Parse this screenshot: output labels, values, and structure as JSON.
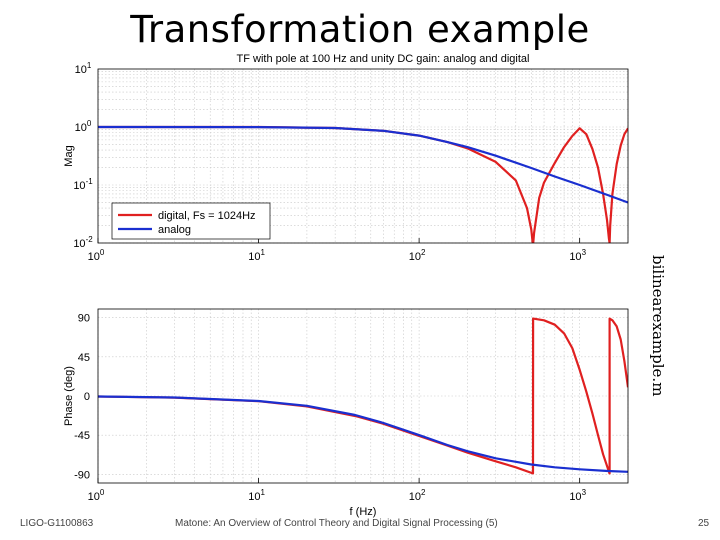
{
  "slide": {
    "title": "Transformation example",
    "side_label": "bilinearexample.m",
    "footer_left": "LIGO-G1100863",
    "footer_center": "Matone: An Overview of Control Theory and Digital Signal Processing (5)",
    "page_number": "25"
  },
  "colors": {
    "digital": "#e02020",
    "analog": "#1a2fd0",
    "grid": "#c8c8c8",
    "axis": "#000000"
  },
  "chart_data": [
    {
      "type": "line",
      "title": "TF with pole at 100 Hz and unity DC gain: analog and digital",
      "xlabel": "",
      "ylabel": "Mag",
      "xscale": "log",
      "yscale": "log",
      "xlim": [
        1,
        2000
      ],
      "ylim": [
        0.01,
        10
      ],
      "xticks": [
        "10^0",
        "10^1",
        "10^2",
        "10^3"
      ],
      "yticks": [
        "10^-2",
        "10^-1",
        "10^0",
        "10^1"
      ],
      "grid": true,
      "legend_position": "lower-left",
      "series": [
        {
          "name": "digital, Fs = 1024Hz",
          "x": [
            1,
            10,
            30,
            60,
            100,
            150,
            200,
            300,
            400,
            470,
            500,
            512,
            520,
            560,
            600,
            700,
            800,
            900,
            1000,
            1100,
            1200,
            1300,
            1400,
            1480,
            1520,
            1536,
            1550,
            1600,
            1700,
            1800,
            1900,
            2000
          ],
          "y": [
            1.0,
            1.0,
            0.96,
            0.86,
            0.71,
            0.55,
            0.43,
            0.25,
            0.12,
            0.04,
            0.017,
            0.009,
            0.015,
            0.06,
            0.11,
            0.24,
            0.45,
            0.7,
            0.95,
            0.75,
            0.42,
            0.2,
            0.07,
            0.025,
            0.012,
            0.01,
            0.02,
            0.07,
            0.23,
            0.48,
            0.75,
            0.95
          ]
        },
        {
          "name": "analog",
          "x": [
            1,
            10,
            30,
            60,
            100,
            150,
            200,
            300,
            500,
            700,
            1000,
            1500,
            2000
          ],
          "y": [
            1.0,
            0.995,
            0.96,
            0.86,
            0.71,
            0.55,
            0.45,
            0.32,
            0.196,
            0.14,
            0.1,
            0.067,
            0.05
          ]
        }
      ]
    },
    {
      "type": "line",
      "title": "",
      "xlabel": "f (Hz)",
      "ylabel": "Phase (deg)",
      "xscale": "log",
      "xlim": [
        1,
        2000
      ],
      "ylim": [
        -100,
        100
      ],
      "xticks": [
        "10^0",
        "10^1",
        "10^2",
        "10^3"
      ],
      "yticks": [
        "-90",
        "-45",
        "0",
        "45",
        "90"
      ],
      "grid": true,
      "series": [
        {
          "name": "digital, Fs = 1024Hz",
          "x": [
            1,
            3,
            10,
            20,
            40,
            60,
            100,
            150,
            200,
            300,
            400,
            511,
            512,
            513,
            600,
            700,
            800,
            900,
            1000,
            1100,
            1200,
            1300,
            1400,
            1535,
            1536,
            1537,
            1600,
            1700,
            1800,
            1900,
            2000
          ],
          "y": [
            -0.6,
            -1.8,
            -6,
            -12,
            -23,
            -32,
            -46,
            -57,
            -65,
            -75,
            -82,
            -89,
            -89,
            89,
            87,
            82,
            72,
            55,
            30,
            5,
            -20,
            -45,
            -67,
            -89,
            -89,
            89,
            87,
            80,
            65,
            40,
            10
          ]
        },
        {
          "name": "analog",
          "x": [
            1,
            3,
            10,
            20,
            40,
            60,
            100,
            150,
            200,
            300,
            500,
            700,
            1000,
            1500,
            2000
          ],
          "y": [
            -0.6,
            -1.7,
            -5.7,
            -11.3,
            -21.8,
            -31,
            -45,
            -56.3,
            -63.4,
            -71.6,
            -78.7,
            -81.9,
            -84.3,
            -86.2,
            -87.1
          ]
        }
      ]
    }
  ]
}
